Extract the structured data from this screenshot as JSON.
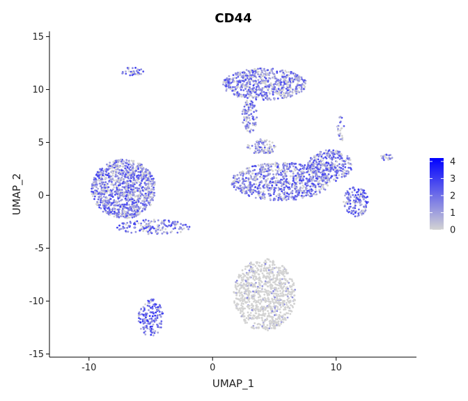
{
  "chart_data": {
    "type": "scatter",
    "title": "CD44",
    "xlabel": "UMAP_1",
    "ylabel": "UMAP_2",
    "xlim": [
      -13.2,
      16.5
    ],
    "ylim": [
      -15.3,
      15.5
    ],
    "x_ticks": [
      -10,
      0,
      10
    ],
    "x_tick_labels": [
      "-10",
      "0",
      "10"
    ],
    "y_ticks": [
      -15,
      -10,
      -5,
      0,
      5,
      10,
      15
    ],
    "y_tick_labels": [
      "-15",
      "-10",
      "-5",
      "0",
      "5",
      "10",
      "15"
    ],
    "grid": false,
    "legend_position": "right",
    "colorscale": {
      "low_color": "#d3d3d3",
      "high_color": "#0000ff",
      "min": 0,
      "max": 4.2,
      "ticks": [
        0,
        1,
        2,
        3,
        4
      ],
      "tick_labels": [
        "0",
        "1",
        "2",
        "3",
        "4"
      ]
    },
    "clusters": [
      {
        "center": [
          -7.2,
          0.6
        ],
        "spread": [
          2.6,
          2.8
        ],
        "n": 1100,
        "mean_expr": 1.6
      },
      {
        "center": [
          -4.8,
          -3.0
        ],
        "spread": [
          3.0,
          0.7
        ],
        "n": 160,
        "mean_expr": 1.7
      },
      {
        "center": [
          4.2,
          10.5
        ],
        "spread": [
          3.4,
          1.5
        ],
        "n": 650,
        "mean_expr": 1.5
      },
      {
        "center": [
          3.0,
          7.5
        ],
        "spread": [
          0.6,
          1.6
        ],
        "n": 110,
        "mean_expr": 1.4
      },
      {
        "center": [
          4.0,
          4.6
        ],
        "spread": [
          1.2,
          0.7
        ],
        "n": 90,
        "mean_expr": 1.2
      },
      {
        "center": [
          5.5,
          1.3
        ],
        "spread": [
          4.0,
          1.8
        ],
        "n": 800,
        "mean_expr": 1.6
      },
      {
        "center": [
          9.5,
          2.8
        ],
        "spread": [
          1.8,
          1.5
        ],
        "n": 320,
        "mean_expr": 1.6
      },
      {
        "center": [
          11.6,
          -0.6
        ],
        "spread": [
          1.0,
          1.4
        ],
        "n": 150,
        "mean_expr": 1.8
      },
      {
        "center": [
          10.4,
          6.3
        ],
        "spread": [
          0.3,
          1.2
        ],
        "n": 25,
        "mean_expr": 1.3
      },
      {
        "center": [
          14.1,
          3.6
        ],
        "spread": [
          0.5,
          0.3
        ],
        "n": 20,
        "mean_expr": 1.5
      },
      {
        "center": [
          -6.5,
          11.7
        ],
        "spread": [
          1.0,
          0.4
        ],
        "n": 35,
        "mean_expr": 1.6
      },
      {
        "center": [
          4.2,
          -9.4
        ],
        "spread": [
          2.5,
          3.4
        ],
        "n": 900,
        "mean_expr": 0.2
      },
      {
        "center": [
          -5.0,
          -11.6
        ],
        "spread": [
          1.0,
          1.8
        ],
        "n": 160,
        "mean_expr": 2.0
      }
    ]
  }
}
